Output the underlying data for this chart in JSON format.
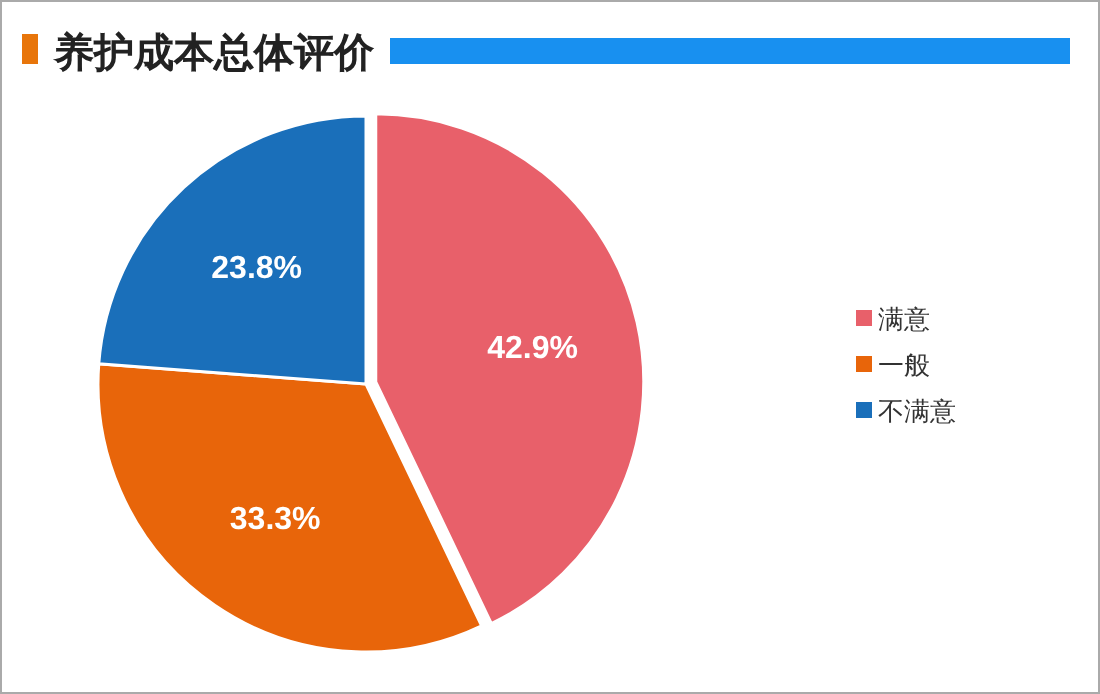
{
  "chart_data": {
    "type": "pie",
    "title": "养护成本总体评价",
    "categories": [
      "满意",
      "一般",
      "不满意"
    ],
    "values": [
      42.9,
      33.3,
      23.8
    ],
    "colors": [
      "#e8606a",
      "#e8650a",
      "#1a6fba"
    ],
    "value_labels": [
      "42.9%",
      "33.3%",
      "23.8%"
    ],
    "legend": "right"
  }
}
